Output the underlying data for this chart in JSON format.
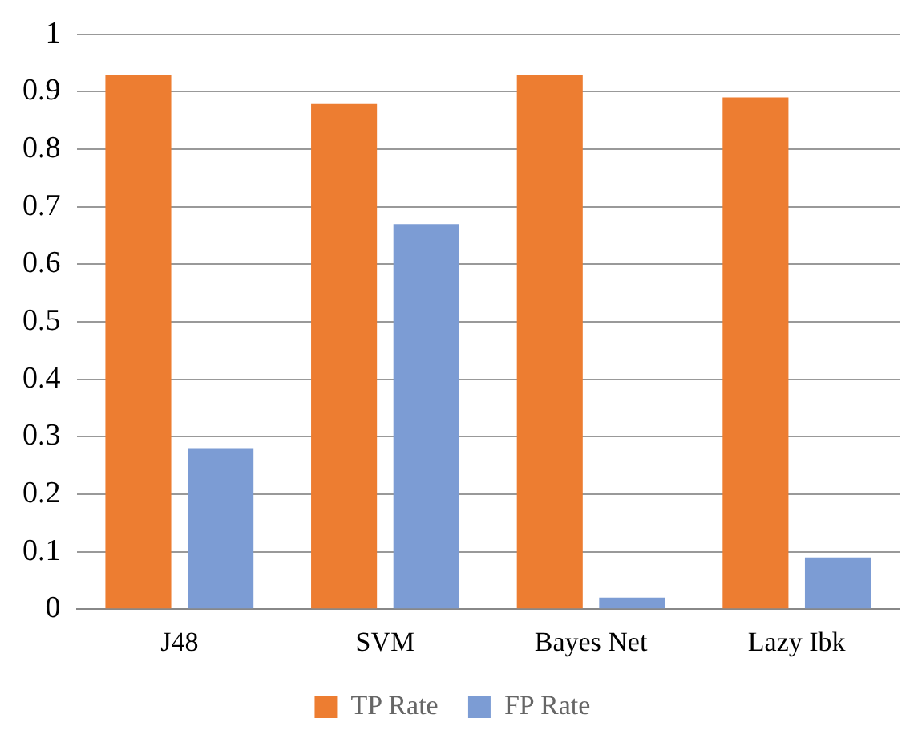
{
  "chart_data": {
    "type": "bar",
    "categories": [
      "J48",
      "SVM",
      "Bayes Net",
      "Lazy Ibk"
    ],
    "series": [
      {
        "name": "TP Rate",
        "color": "#ed7d31",
        "values": [
          0.93,
          0.88,
          0.93,
          0.89
        ]
      },
      {
        "name": "FP Rate",
        "color": "#7c9cd4",
        "values": [
          0.28,
          0.67,
          0.02,
          0.09
        ]
      }
    ],
    "ylim": [
      0,
      1
    ],
    "yticks": [
      0,
      0.1,
      0.2,
      0.3,
      0.4,
      0.5,
      0.6,
      0.7,
      0.8,
      0.9,
      1
    ],
    "grid": "y",
    "legend": "bottom"
  }
}
